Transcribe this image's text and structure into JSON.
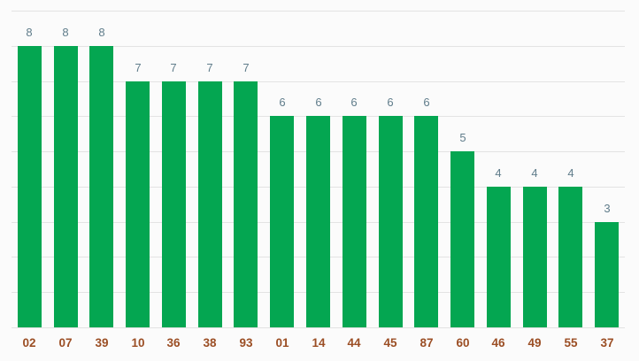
{
  "chart_data": {
    "type": "bar",
    "title": "",
    "xlabel": "",
    "ylabel": "",
    "legend_position": "none",
    "grid": true,
    "ylim": [
      0,
      9
    ],
    "gridline_step": 1,
    "categories": [
      "02",
      "07",
      "39",
      "10",
      "36",
      "38",
      "93",
      "01",
      "14",
      "44",
      "45",
      "87",
      "60",
      "46",
      "49",
      "55",
      "37"
    ],
    "values": [
      8,
      8,
      8,
      7,
      7,
      7,
      7,
      6,
      6,
      6,
      6,
      6,
      5,
      4,
      4,
      4,
      3
    ],
    "colors": {
      "bar": "#04a651",
      "value_label": "#607d8b",
      "category_label": "#9b4e24",
      "gridline": "#e3e3e3",
      "background": "#fbfbfb"
    }
  }
}
